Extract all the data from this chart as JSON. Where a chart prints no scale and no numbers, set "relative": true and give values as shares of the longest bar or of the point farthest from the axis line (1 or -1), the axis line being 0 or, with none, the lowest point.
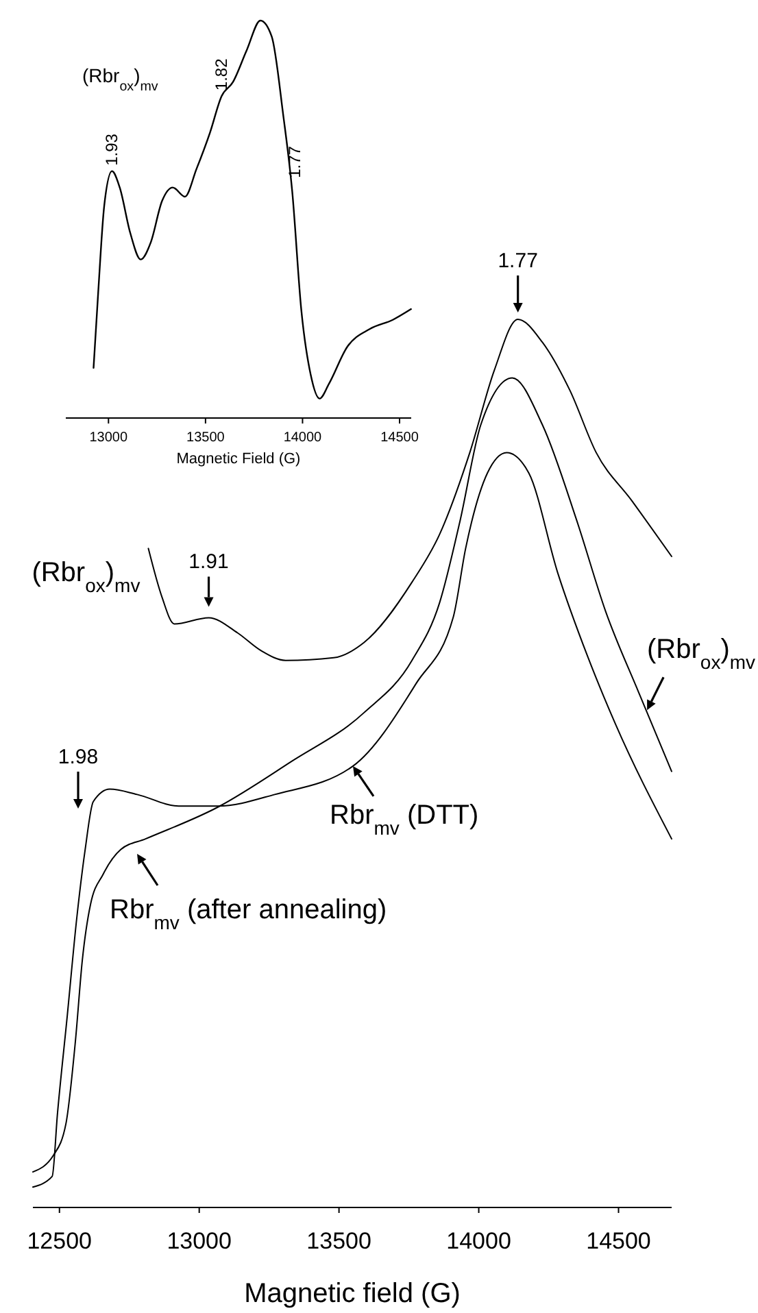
{
  "chart_data": [
    {
      "type": "line",
      "relative": true,
      "xlabel": "Magnetic field (G)",
      "xlim": [
        12405,
        14690
      ],
      "xticks": [
        12500,
        13000,
        13500,
        14000,
        14500
      ],
      "series": [
        {
          "color": "#000000",
          "x": [
            12818,
            12867,
            12911,
            13034,
            13137,
            13221,
            13309,
            13481,
            13589,
            13761,
            13860,
            13968,
            14056,
            14140,
            14228,
            14326,
            14420,
            14547,
            14690
          ],
          "values": [
            0.742,
            0.687,
            0.657,
            0.664,
            0.647,
            0.627,
            0.616,
            0.619,
            0.636,
            0.704,
            0.758,
            0.85,
            0.943,
            1.0,
            0.974,
            0.92,
            0.85,
            0.796,
            0.733
          ]
        },
        {
          "color": "#000000",
          "x": [
            12405,
            12479,
            12523,
            12557,
            12582,
            12611,
            12656,
            12719,
            12808,
            13068,
            13329,
            13589,
            13761,
            13860,
            13933,
            14007,
            14120,
            14228,
            14351,
            14454,
            14572,
            14690
          ],
          "values": [
            0.04,
            0.059,
            0.094,
            0.187,
            0.279,
            0.341,
            0.375,
            0.403,
            0.415,
            0.451,
            0.502,
            0.557,
            0.616,
            0.681,
            0.773,
            0.881,
            0.934,
            0.881,
            0.773,
            0.671,
            0.58,
            0.491
          ]
        },
        {
          "color": "#000000",
          "x": [
            12405,
            12474,
            12493,
            12528,
            12562,
            12592,
            12621,
            12680,
            12778,
            12926,
            13068,
            13270,
            13550,
            13776,
            13909,
            13953,
            14031,
            14100,
            14179,
            14282,
            14390,
            14488,
            14690
          ],
          "values": [
            0.023,
            0.035,
            0.106,
            0.216,
            0.326,
            0.403,
            0.457,
            0.471,
            0.465,
            0.452,
            0.452,
            0.465,
            0.497,
            0.59,
            0.665,
            0.742,
            0.827,
            0.85,
            0.827,
            0.715,
            0.62,
            0.545,
            0.415
          ]
        }
      ],
      "annotations": [
        {
          "text": "1.77",
          "x": 14140,
          "y": 1.0
        },
        {
          "text": "1.91",
          "x": 13034,
          "y": 0.664
        },
        "1.98",
        {
          "text": "(Rbr$_{ox}$)$_{mv}$",
          "x": 12818,
          "y": 0.742
        },
        {
          "text": "(Rbr$_{ox}$)$_{mv}$",
          "x": 14602,
          "y": 0.56
        },
        {
          "text": "Rbr$_{mv}$ (DTT)",
          "x": 13550,
          "y": 0.497
        },
        "Rbr$_{mv}$ (after annealing)"
      ]
    },
    {
      "type": "line",
      "relative": true,
      "xlabel": "Magnetic Field (G)",
      "xlim": [
        12780,
        14560
      ],
      "xticks": [
        13000,
        13500,
        14000,
        14500
      ],
      "series": [
        {
          "color": "#000000",
          "x": [
            12923,
            12947,
            12978,
            13018,
            13058,
            13112,
            13166,
            13218,
            13276,
            13331,
            13394,
            13453,
            13523,
            13583,
            13641,
            13712,
            13783,
            13841,
            13900,
            13947,
            13994,
            14042,
            14088,
            14136,
            14229,
            14347,
            14465,
            14559
          ],
          "values": [
            0.126,
            0.316,
            0.534,
            0.621,
            0.58,
            0.466,
            0.399,
            0.442,
            0.546,
            0.58,
            0.557,
            0.626,
            0.718,
            0.81,
            0.845,
            0.925,
            1.0,
            0.96,
            0.764,
            0.569,
            0.27,
            0.109,
            0.049,
            0.086,
            0.178,
            0.224,
            0.247,
            0.274
          ]
        }
      ],
      "annotations": [
        "(Rbr$_{ox}$)$_{mv}$",
        {
          "text": "1.93",
          "x": 13018,
          "y": 0.621
        },
        {
          "text": "1.82",
          "x": 13583,
          "y": 0.81
        },
        {
          "text": "1.77",
          "x": 13960,
          "y": 0.59
        }
      ]
    }
  ]
}
